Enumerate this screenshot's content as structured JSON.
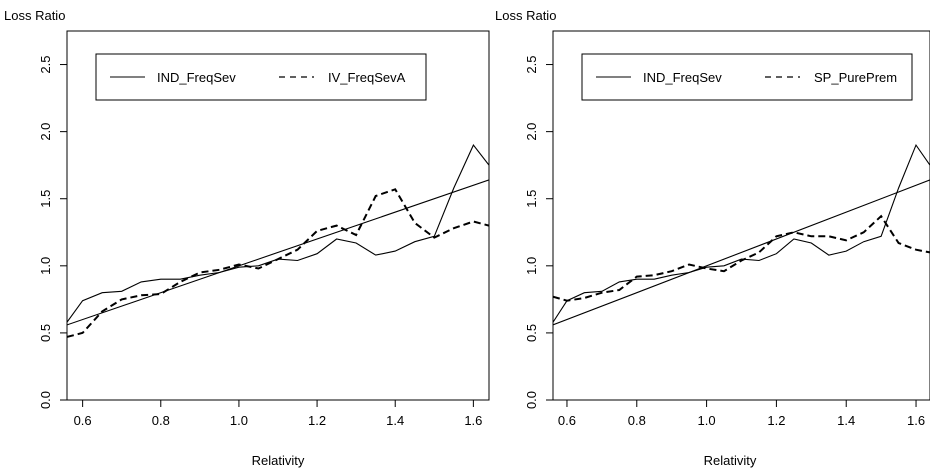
{
  "chart_data": [
    {
      "type": "line",
      "xlabel": "Relativity",
      "ylabel": "Loss Ratio",
      "xlim": [
        0.56,
        1.64
      ],
      "ylim": [
        0.0,
        2.75
      ],
      "xticks": [
        "0.6",
        "0.8",
        "1.0",
        "1.2",
        "1.4",
        "1.6"
      ],
      "yticks": [
        "0.0",
        "0.5",
        "1.0",
        "1.5",
        "2.0",
        "2.5"
      ],
      "legend": {
        "position": "top",
        "entries": [
          "IND_FreqSev",
          "IV_FreqSevA"
        ]
      },
      "series": [
        {
          "name": "IND_FreqSev",
          "style": "solid",
          "x": [
            0.56,
            0.6,
            0.65,
            0.7,
            0.75,
            0.8,
            0.85,
            0.9,
            0.95,
            1.0,
            1.05,
            1.1,
            1.15,
            1.2,
            1.25,
            1.3,
            1.35,
            1.4,
            1.45,
            1.5,
            1.55,
            1.6,
            1.64
          ],
          "y": [
            0.58,
            0.74,
            0.8,
            0.81,
            0.88,
            0.9,
            0.9,
            0.93,
            0.95,
            0.99,
            1.0,
            1.05,
            1.04,
            1.09,
            1.2,
            1.17,
            1.08,
            1.11,
            1.18,
            1.22,
            1.58,
            1.9,
            1.75
          ]
        },
        {
          "name": "IV_FreqSevA",
          "style": "dashed",
          "x": [
            0.56,
            0.6,
            0.65,
            0.7,
            0.75,
            0.8,
            0.85,
            0.9,
            0.95,
            1.0,
            1.05,
            1.1,
            1.15,
            1.2,
            1.25,
            1.3,
            1.35,
            1.4,
            1.45,
            1.5,
            1.55,
            1.6,
            1.64
          ],
          "y": [
            0.47,
            0.5,
            0.66,
            0.75,
            0.78,
            0.79,
            0.88,
            0.95,
            0.97,
            1.01,
            0.98,
            1.05,
            1.12,
            1.26,
            1.3,
            1.23,
            1.52,
            1.57,
            1.32,
            1.21,
            1.28,
            1.33,
            1.3
          ]
        },
        {
          "style": "solid",
          "x": [
            0.56,
            1.64
          ],
          "y": [
            0.56,
            1.64
          ]
        }
      ]
    },
    {
      "type": "line",
      "xlabel": "Relativity",
      "ylabel": "Loss Ratio",
      "xlim": [
        0.56,
        1.64
      ],
      "ylim": [
        0.0,
        2.75
      ],
      "xticks": [
        "0.6",
        "0.8",
        "1.0",
        "1.2",
        "1.4",
        "1.6"
      ],
      "yticks": [
        "0.0",
        "0.5",
        "1.0",
        "1.5",
        "2.0",
        "2.5"
      ],
      "legend": {
        "position": "top",
        "entries": [
          "IND_FreqSev",
          "SP_PurePrem"
        ]
      },
      "series": [
        {
          "name": "IND_FreqSev",
          "style": "solid",
          "x": [
            0.56,
            0.6,
            0.65,
            0.7,
            0.75,
            0.8,
            0.85,
            0.9,
            0.95,
            1.0,
            1.05,
            1.1,
            1.15,
            1.2,
            1.25,
            1.3,
            1.35,
            1.4,
            1.45,
            1.5,
            1.55,
            1.6,
            1.64
          ],
          "y": [
            0.58,
            0.74,
            0.8,
            0.81,
            0.88,
            0.9,
            0.9,
            0.93,
            0.95,
            0.99,
            1.0,
            1.05,
            1.04,
            1.09,
            1.2,
            1.17,
            1.08,
            1.11,
            1.18,
            1.22,
            1.58,
            1.9,
            1.75
          ]
        },
        {
          "name": "SP_PurePrem",
          "style": "dashed",
          "x": [
            0.56,
            0.6,
            0.65,
            0.7,
            0.75,
            0.8,
            0.85,
            0.9,
            0.95,
            1.0,
            1.05,
            1.1,
            1.15,
            1.2,
            1.25,
            1.3,
            1.35,
            1.4,
            1.45,
            1.5,
            1.55,
            1.6,
            1.64
          ],
          "y": [
            0.77,
            0.74,
            0.76,
            0.8,
            0.82,
            0.92,
            0.93,
            0.96,
            1.01,
            0.98,
            0.96,
            1.04,
            1.1,
            1.22,
            1.25,
            1.22,
            1.22,
            1.19,
            1.25,
            1.37,
            1.17,
            1.12,
            1.1
          ]
        },
        {
          "style": "solid",
          "x": [
            0.56,
            1.64
          ],
          "y": [
            0.56,
            1.64
          ]
        }
      ]
    }
  ]
}
